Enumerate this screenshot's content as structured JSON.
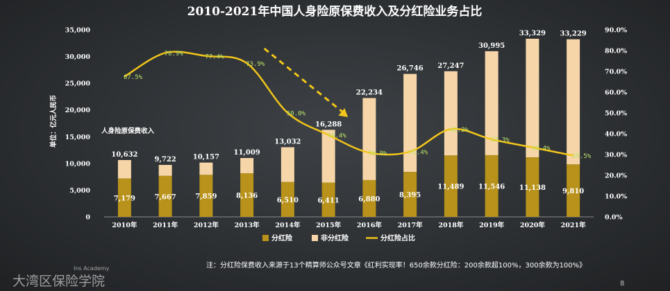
{
  "chart_data": {
    "type": "bar",
    "title": "2010-2021年中国人身险原保费收入及分红险业务占比",
    "ylabel_left": "单位：亿元人民币",
    "series_group_label": "人身险原保费收入",
    "categories": [
      "2010年",
      "2011年",
      "2012年",
      "2013年",
      "2014年",
      "2015年",
      "2016年",
      "2017年",
      "2018年",
      "2019年",
      "2020年",
      "2021年"
    ],
    "series": [
      {
        "name": "分红险",
        "values": [
          7179,
          7667,
          7859,
          8136,
          6510,
          6411,
          6880,
          8395,
          11489,
          11546,
          11138,
          9810
        ],
        "labels": [
          "7,179",
          "7,667",
          "7,859",
          "8,136",
          "6,510",
          "6,411",
          "6,880",
          "8,395",
          "11,489",
          "11,546",
          "11,138",
          "9,810"
        ],
        "color": "#b8921a"
      },
      {
        "name": "非分红险",
        "total_values": [
          10632,
          9722,
          10157,
          11009,
          13032,
          16288,
          22234,
          26746,
          27247,
          30995,
          33329,
          33229
        ],
        "total_labels": [
          "10,632",
          "9,722",
          "10,157",
          "11,009",
          "13,032",
          "16,288",
          "22,234",
          "26,746",
          "27,247",
          "30,995",
          "33,329",
          "33,229"
        ],
        "color": "#f6d6a8"
      },
      {
        "name": "分红险占比",
        "type": "line",
        "axis": "right",
        "values": [
          67.5,
          78.9,
          77.4,
          73.9,
          50.0,
          39.4,
          30.9,
          31.4,
          42.2,
          37.3,
          33.4,
          29.5
        ],
        "labels": [
          "67.5%",
          "78.9%",
          "77.4%",
          "73.9%",
          "50.0%",
          "39.4%",
          "30.9%",
          "31.4%",
          "42.2%",
          "37.3%",
          "33.4%",
          "29.5%"
        ],
        "color": "#f2c51a"
      }
    ],
    "ylim_left": [
      0,
      35000
    ],
    "yticks_left": [
      0,
      5000,
      10000,
      15000,
      20000,
      25000,
      30000,
      35000
    ],
    "ytick_labels_left": [
      "0",
      "5,000",
      "10,000",
      "15,000",
      "20,000",
      "25,000",
      "30,000",
      "35,000"
    ],
    "ylim_right": [
      0,
      90
    ],
    "yticks_right": [
      0,
      10,
      20,
      30,
      40,
      50,
      60,
      70,
      80,
      90
    ],
    "ytick_labels_right": [
      "0.0%",
      "10.0%",
      "20.0%",
      "30.0%",
      "40.0%",
      "50.0%",
      "60.0%",
      "70.0%",
      "80.0%",
      "90.0%"
    ],
    "legend": [
      "分红险",
      "非分红险",
      "分红险占比"
    ],
    "legend_position": "bottom",
    "trend_arrow": {
      "from_category": "2013年",
      "to_category": "2015年",
      "style": "dashed-down",
      "color": "#f2c51a"
    }
  },
  "footnote": "注：分红险保费收入来源于13个精算师公众号文章《红利实现率！650余款分红险：200余款超100%，300余款为100%》",
  "brand": {
    "name_cn": "大湾区保险学院",
    "name_en": "Ins Academy"
  },
  "page_number": "8"
}
